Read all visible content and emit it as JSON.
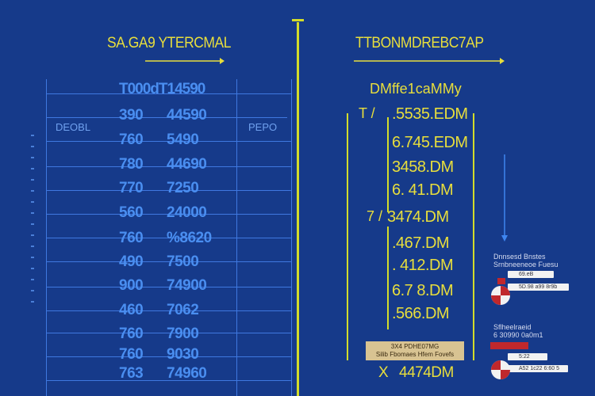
{
  "left": {
    "title": "SA.GA9 YTERCMAL",
    "column_header": "T000dT14590",
    "side_left": "DEOBL",
    "side_right": "PEPO",
    "rows": [
      {
        "a": "390",
        "b": "44590"
      },
      {
        "a": "760",
        "b": "5490"
      },
      {
        "a": "780",
        "b": "44690"
      },
      {
        "a": "770",
        "b": "7250"
      },
      {
        "a": "560",
        "b": "24000"
      },
      {
        "a": "760",
        "b": "%8620"
      },
      {
        "a": "490",
        "b": "7500"
      },
      {
        "a": "900",
        "b": "74900"
      },
      {
        "a": "460",
        "b": "7062"
      },
      {
        "a": "760",
        "b": "7900"
      },
      {
        "a": "760",
        "b": "9030"
      },
      {
        "a": "763",
        "b": "74960"
      }
    ]
  },
  "right": {
    "title": "TTBONMDREBC7AP",
    "subtitle": "DMffe1caMMy",
    "items": [
      {
        "mark": "T /",
        "value": ".5535.EDM"
      },
      {
        "mark": "",
        "value": "6.745.EDM"
      },
      {
        "mark": "",
        "value": "3458.DM"
      },
      {
        "mark": "",
        "value": "6. 41.DM"
      },
      {
        "mark": "7 /",
        "value": "3474.DM"
      },
      {
        "mark": "",
        "value": ".467.DM"
      },
      {
        "mark": "",
        "value": ". 412.DM"
      },
      {
        "mark": "",
        "value": "6.7 8.DM"
      },
      {
        "mark": "",
        "value": ".566.DM"
      }
    ],
    "highlight_lines": [
      "3X4 PDHE07MG",
      "Silib Fbomaes Hfem Fovefs"
    ],
    "bottom_mark": "X",
    "bottom_value": "4474DM"
  },
  "legend_top": {
    "title_lines": [
      "Dnnsesd Bnstes",
      "Srnbneeneoe Fuesu"
    ],
    "bars": [
      "69.eB",
      "5D.98  a99 8r9b"
    ]
  },
  "legend_bottom": {
    "title_lines": [
      "Sflheelraeid",
      "6 30990 0a0m1"
    ],
    "bars": [
      "5:22",
      "A52 1c22 6:60 5"
    ]
  },
  "colors": {
    "background": "#163a8a",
    "accent_yellow": "#e8de3c",
    "table_blue": "#4a8ef0",
    "highlight": "#d8c392",
    "legend_red": "#c0282c"
  }
}
